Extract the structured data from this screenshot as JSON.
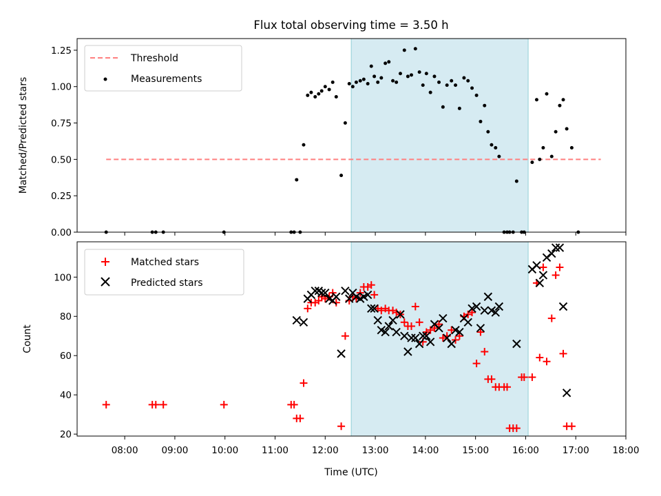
{
  "chart_data": {
    "title": "Flux total observing time = 3.50 h",
    "xlabel": "Time (UTC)",
    "x_ticks": [
      "08:00",
      "09:00",
      "10:00",
      "11:00",
      "12:00",
      "13:00",
      "14:00",
      "15:00",
      "16:00",
      "17:00",
      "18:00"
    ],
    "x_tick_values": [
      8,
      9,
      10,
      11,
      12,
      13,
      14,
      15,
      16,
      17,
      18
    ],
    "xlim": [
      7.05,
      18.0
    ],
    "shaded_interval": {
      "start": 12.52,
      "end": 16.05,
      "color": "#add8e6"
    },
    "panels": [
      {
        "id": "ratio",
        "type": "scatter",
        "ylabel": "Matched/Predicted stars",
        "ylim": [
          0.0,
          1.33
        ],
        "y_ticks": [
          "0.00",
          "0.25",
          "0.50",
          "0.75",
          "1.00",
          "1.25"
        ],
        "y_tick_values": [
          0,
          0.25,
          0.5,
          0.75,
          1.0,
          1.25
        ],
        "legend": {
          "position": "upper left"
        },
        "threshold": {
          "name": "Threshold",
          "value": 0.5,
          "x_range": [
            7.63,
            17.5
          ],
          "color": "#ff7f7f",
          "style": "dashed"
        },
        "series": [
          {
            "name": "Measurements",
            "marker": "dot",
            "color": "#000000",
            "points": [
              [
                7.63,
                0
              ],
              [
                8.55,
                0
              ],
              [
                8.62,
                0
              ],
              [
                8.77,
                0
              ],
              [
                9.98,
                0
              ],
              [
                11.32,
                0
              ],
              [
                11.38,
                0
              ],
              [
                11.43,
                0.36
              ],
              [
                11.5,
                0
              ],
              [
                11.57,
                0.6
              ],
              [
                11.65,
                0.94
              ],
              [
                11.72,
                0.96
              ],
              [
                11.8,
                0.93
              ],
              [
                11.87,
                0.95
              ],
              [
                11.93,
                0.97
              ],
              [
                12.0,
                1.0
              ],
              [
                12.08,
                0.98
              ],
              [
                12.15,
                1.03
              ],
              [
                12.22,
                0.93
              ],
              [
                12.32,
                0.39
              ],
              [
                12.4,
                0.75
              ],
              [
                12.48,
                1.02
              ],
              [
                12.55,
                1.0
              ],
              [
                12.62,
                1.03
              ],
              [
                12.7,
                1.04
              ],
              [
                12.77,
                1.05
              ],
              [
                12.85,
                1.02
              ],
              [
                12.92,
                1.14
              ],
              [
                12.98,
                1.07
              ],
              [
                13.05,
                1.03
              ],
              [
                13.12,
                1.06
              ],
              [
                13.2,
                1.16
              ],
              [
                13.27,
                1.17
              ],
              [
                13.35,
                1.04
              ],
              [
                13.42,
                1.03
              ],
              [
                13.5,
                1.09
              ],
              [
                13.58,
                1.25
              ],
              [
                13.65,
                1.07
              ],
              [
                13.72,
                1.08
              ],
              [
                13.8,
                1.26
              ],
              [
                13.88,
                1.1
              ],
              [
                13.95,
                1.01
              ],
              [
                14.02,
                1.09
              ],
              [
                14.1,
                0.96
              ],
              [
                14.18,
                1.07
              ],
              [
                14.27,
                1.03
              ],
              [
                14.35,
                0.86
              ],
              [
                14.43,
                1.01
              ],
              [
                14.52,
                1.04
              ],
              [
                14.6,
                1.01
              ],
              [
                14.68,
                0.85
              ],
              [
                14.77,
                1.06
              ],
              [
                14.85,
                1.04
              ],
              [
                14.93,
                0.99
              ],
              [
                15.02,
                0.94
              ],
              [
                15.1,
                0.76
              ],
              [
                15.18,
                0.87
              ],
              [
                15.25,
                0.69
              ],
              [
                15.32,
                0.6
              ],
              [
                15.4,
                0.58
              ],
              [
                15.47,
                0.52
              ],
              [
                15.57,
                0
              ],
              [
                15.63,
                0
              ],
              [
                15.68,
                0
              ],
              [
                15.75,
                0
              ],
              [
                15.82,
                0.35
              ],
              [
                15.92,
                0
              ],
              [
                15.97,
                0
              ],
              [
                16.13,
                0.48
              ],
              [
                16.22,
                0.91
              ],
              [
                16.28,
                0.5
              ],
              [
                16.35,
                0.58
              ],
              [
                16.42,
                0.95
              ],
              [
                16.52,
                0.52
              ],
              [
                16.6,
                0.69
              ],
              [
                16.68,
                0.87
              ],
              [
                16.75,
                0.91
              ],
              [
                16.82,
                0.71
              ],
              [
                16.92,
                0.58
              ],
              [
                17.05,
                0
              ]
            ]
          }
        ]
      },
      {
        "id": "counts",
        "type": "scatter",
        "ylabel": "Count",
        "ylim": [
          19,
          118
        ],
        "y_ticks": [
          "20",
          "40",
          "60",
          "80",
          "100"
        ],
        "y_tick_values": [
          20,
          40,
          60,
          80,
          100
        ],
        "legend": {
          "position": "upper left"
        },
        "series": [
          {
            "name": "Matched stars",
            "marker": "plus",
            "color": "#ff0000",
            "points": [
              [
                7.63,
                35
              ],
              [
                8.55,
                35
              ],
              [
                8.62,
                35
              ],
              [
                8.77,
                35
              ],
              [
                9.98,
                35
              ],
              [
                11.32,
                35
              ],
              [
                11.38,
                35
              ],
              [
                11.43,
                28
              ],
              [
                11.5,
                28
              ],
              [
                11.57,
                46
              ],
              [
                11.65,
                84
              ],
              [
                11.72,
                87
              ],
              [
                11.8,
                87
              ],
              [
                11.87,
                88
              ],
              [
                11.93,
                90
              ],
              [
                12.0,
                89
              ],
              [
                12.08,
                90
              ],
              [
                12.15,
                92
              ],
              [
                12.22,
                87
              ],
              [
                12.32,
                24
              ],
              [
                12.4,
                70
              ],
              [
                12.48,
                88
              ],
              [
                12.55,
                90
              ],
              [
                12.62,
                89
              ],
              [
                12.7,
                92
              ],
              [
                12.77,
                95
              ],
              [
                12.85,
                95
              ],
              [
                12.92,
                96
              ],
              [
                12.98,
                91
              ],
              [
                13.05,
                84
              ],
              [
                13.12,
                83
              ],
              [
                13.2,
                84
              ],
              [
                13.27,
                83
              ],
              [
                13.35,
                83
              ],
              [
                13.42,
                82
              ],
              [
                13.5,
                81
              ],
              [
                13.58,
                77
              ],
              [
                13.65,
                75
              ],
              [
                13.72,
                75
              ],
              [
                13.8,
                85
              ],
              [
                13.88,
                77
              ],
              [
                13.95,
                67
              ],
              [
                14.02,
                72
              ],
              [
                14.1,
                73
              ],
              [
                14.18,
                74
              ],
              [
                14.27,
                76
              ],
              [
                14.35,
                69
              ],
              [
                14.43,
                70
              ],
              [
                14.52,
                73
              ],
              [
                14.6,
                68
              ],
              [
                14.68,
                70
              ],
              [
                14.77,
                80
              ],
              [
                14.85,
                81
              ],
              [
                14.93,
                82
              ],
              [
                15.02,
                56
              ],
              [
                15.1,
                72
              ],
              [
                15.18,
                62
              ],
              [
                15.25,
                48
              ],
              [
                15.32,
                48
              ],
              [
                15.4,
                44
              ],
              [
                15.47,
                44
              ],
              [
                15.57,
                44
              ],
              [
                15.63,
                44
              ],
              [
                15.68,
                23
              ],
              [
                15.75,
                23
              ],
              [
                15.82,
                23
              ],
              [
                15.92,
                49
              ],
              [
                15.97,
                49
              ],
              [
                16.13,
                49
              ],
              [
                16.22,
                97
              ],
              [
                16.28,
                59
              ],
              [
                16.35,
                105
              ],
              [
                16.42,
                57
              ],
              [
                16.52,
                79
              ],
              [
                16.6,
                101
              ],
              [
                16.68,
                105
              ],
              [
                16.75,
                61
              ],
              [
                16.82,
                24
              ],
              [
                16.92,
                24
              ]
            ]
          },
          {
            "name": "Predicted stars",
            "marker": "x",
            "color": "#000000",
            "points": [
              [
                11.43,
                78
              ],
              [
                11.57,
                77
              ],
              [
                11.65,
                89
              ],
              [
                11.72,
                91
              ],
              [
                11.8,
                93
              ],
              [
                11.87,
                93
              ],
              [
                11.93,
                92
              ],
              [
                12.0,
                92
              ],
              [
                12.08,
                89
              ],
              [
                12.15,
                88
              ],
              [
                12.22,
                90
              ],
              [
                12.32,
                61
              ],
              [
                12.4,
                93
              ],
              [
                12.48,
                89
              ],
              [
                12.55,
                92
              ],
              [
                12.62,
                90
              ],
              [
                12.7,
                89
              ],
              [
                12.77,
                90
              ],
              [
                12.85,
                91
              ],
              [
                12.92,
                84
              ],
              [
                12.98,
                84
              ],
              [
                13.05,
                78
              ],
              [
                13.12,
                73
              ],
              [
                13.2,
                72
              ],
              [
                13.27,
                75
              ],
              [
                13.35,
                78
              ],
              [
                13.42,
                72
              ],
              [
                13.5,
                81
              ],
              [
                13.58,
                70
              ],
              [
                13.65,
                62
              ],
              [
                13.72,
                69
              ],
              [
                13.8,
                69
              ],
              [
                13.88,
                66
              ],
              [
                13.95,
                70
              ],
              [
                14.02,
                70
              ],
              [
                14.1,
                67
              ],
              [
                14.18,
                76
              ],
              [
                14.27,
                74
              ],
              [
                14.35,
                79
              ],
              [
                14.43,
                69
              ],
              [
                14.52,
                66
              ],
              [
                14.6,
                73
              ],
              [
                14.68,
                72
              ],
              [
                14.77,
                79
              ],
              [
                14.85,
                77
              ],
              [
                14.93,
                84
              ],
              [
                15.02,
                85
              ],
              [
                15.1,
                74
              ],
              [
                15.18,
                83
              ],
              [
                15.25,
                90
              ],
              [
                15.32,
                83
              ],
              [
                15.4,
                82
              ],
              [
                15.47,
                85
              ],
              [
                15.82,
                66
              ],
              [
                16.13,
                104
              ],
              [
                16.22,
                106
              ],
              [
                16.28,
                97
              ],
              [
                16.35,
                101
              ],
              [
                16.42,
                110
              ],
              [
                16.52,
                112
              ],
              [
                16.6,
                115
              ],
              [
                16.68,
                115
              ],
              [
                16.75,
                85
              ],
              [
                16.82,
                41
              ]
            ]
          }
        ]
      }
    ]
  }
}
